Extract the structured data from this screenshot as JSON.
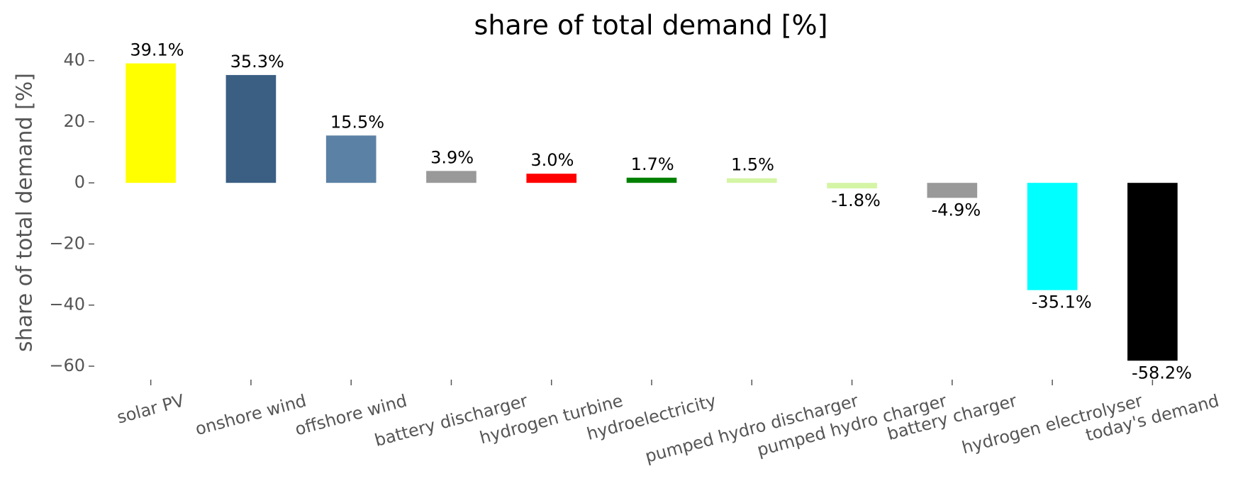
{
  "chart_data": {
    "type": "bar",
    "title": "share of total demand [%]",
    "y_label": "share of total demand [%]",
    "categories": [
      "solar PV",
      "onshore wind",
      "offshore wind",
      "battery discharger",
      "hydrogen turbine",
      "hydroelectricity",
      "pumped hydro discharger",
      "pumped hydro charger",
      "battery charger",
      "hydrogen electrolyser",
      "today's demand"
    ],
    "values": [
      39.1,
      35.3,
      15.5,
      3.9,
      3.0,
      1.7,
      1.5,
      -1.8,
      -4.9,
      -35.1,
      -58.2
    ],
    "value_labels": [
      "39.1%",
      "35.3%",
      "15.5%",
      "3.9%",
      "3.0%",
      "1.7%",
      "1.5%",
      "-1.8%",
      "-4.9%",
      "-35.1%",
      "-58.2%"
    ],
    "colors": [
      "#ffff00",
      "#3a5f83",
      "#5b82a5",
      "#999999",
      "#ff0000",
      "#008000",
      "#d4f5a5",
      "#d4f5a5",
      "#999999",
      "#00ffff",
      "#000000"
    ],
    "ylim": [
      -64.4,
      42
    ],
    "yticks": [
      {
        "value": -60,
        "label": "−60"
      },
      {
        "value": -40,
        "label": "−40"
      },
      {
        "value": -20,
        "label": "−20"
      },
      0,
      20,
      40
    ],
    "grid": false
  }
}
